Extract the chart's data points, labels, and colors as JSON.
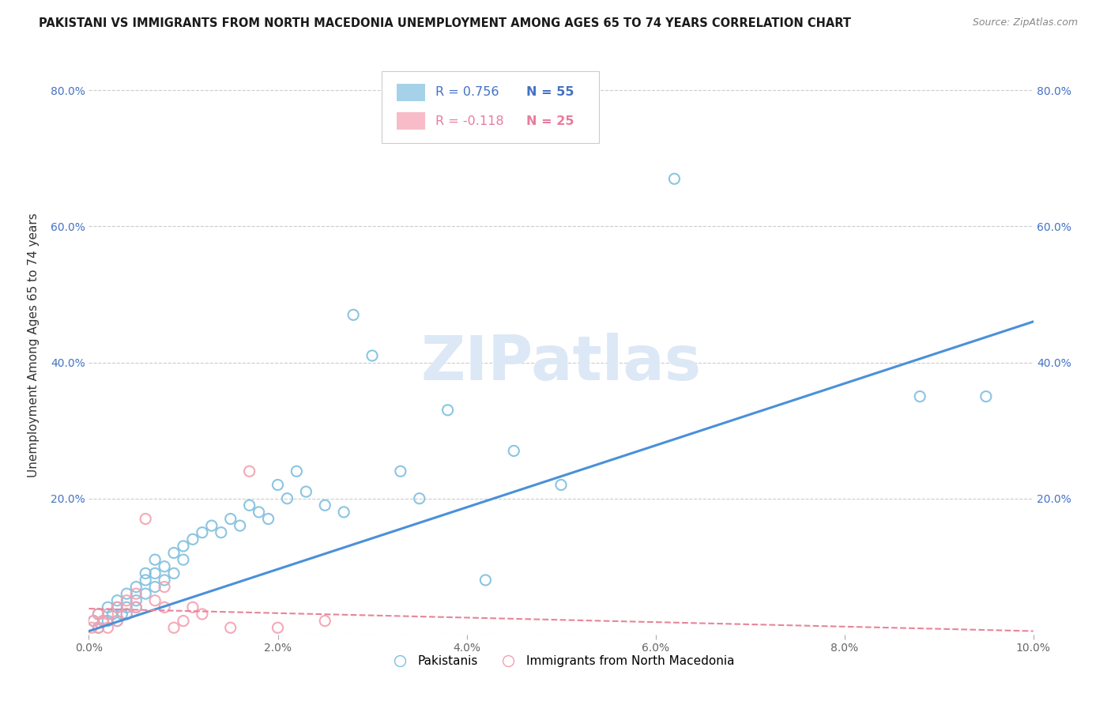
{
  "title": "PAKISTANI VS IMMIGRANTS FROM NORTH MACEDONIA UNEMPLOYMENT AMONG AGES 65 TO 74 YEARS CORRELATION CHART",
  "source": "Source: ZipAtlas.com",
  "ylabel": "Unemployment Among Ages 65 to 74 years",
  "xlim": [
    0.0,
    0.1
  ],
  "ylim": [
    0.0,
    0.85
  ],
  "yticks": [
    0.0,
    0.2,
    0.4,
    0.6,
    0.8
  ],
  "xticks": [
    0.0,
    0.02,
    0.04,
    0.06,
    0.08,
    0.1
  ],
  "xtick_labels": [
    "0.0%",
    "2.0%",
    "4.0%",
    "6.0%",
    "8.0%",
    "10.0%"
  ],
  "ytick_labels": [
    "",
    "20.0%",
    "40.0%",
    "60.0%",
    "80.0%"
  ],
  "blue_R": "R = 0.756",
  "blue_N": "N = 55",
  "pink_R": "R = -0.118",
  "pink_N": "N = 25",
  "blue_color": "#7fbfdf",
  "pink_color": "#f4a0b0",
  "blue_line_color": "#4a90d9",
  "pink_line_color": "#e8849a",
  "legend_pakistanis": "Pakistanis",
  "legend_north_mac": "Immigrants from North Macedonia",
  "blue_scatter_x": [
    0.0005,
    0.001,
    0.001,
    0.0015,
    0.002,
    0.002,
    0.0025,
    0.003,
    0.003,
    0.003,
    0.0035,
    0.004,
    0.004,
    0.004,
    0.005,
    0.005,
    0.005,
    0.006,
    0.006,
    0.006,
    0.007,
    0.007,
    0.007,
    0.008,
    0.008,
    0.009,
    0.009,
    0.01,
    0.01,
    0.011,
    0.012,
    0.013,
    0.014,
    0.015,
    0.016,
    0.017,
    0.018,
    0.019,
    0.02,
    0.021,
    0.022,
    0.023,
    0.025,
    0.027,
    0.028,
    0.03,
    0.033,
    0.035,
    0.038,
    0.042,
    0.045,
    0.05,
    0.062,
    0.088,
    0.095
  ],
  "blue_scatter_y": [
    0.02,
    0.01,
    0.03,
    0.02,
    0.04,
    0.02,
    0.03,
    0.02,
    0.04,
    0.05,
    0.03,
    0.04,
    0.06,
    0.03,
    0.05,
    0.07,
    0.04,
    0.06,
    0.08,
    0.09,
    0.07,
    0.09,
    0.11,
    0.08,
    0.1,
    0.09,
    0.12,
    0.11,
    0.13,
    0.14,
    0.15,
    0.16,
    0.15,
    0.17,
    0.16,
    0.19,
    0.18,
    0.17,
    0.22,
    0.2,
    0.24,
    0.21,
    0.19,
    0.18,
    0.47,
    0.41,
    0.24,
    0.2,
    0.33,
    0.08,
    0.27,
    0.22,
    0.67,
    0.35,
    0.35
  ],
  "pink_scatter_x": [
    0.0003,
    0.0005,
    0.001,
    0.001,
    0.0015,
    0.002,
    0.002,
    0.003,
    0.003,
    0.004,
    0.004,
    0.005,
    0.005,
    0.006,
    0.007,
    0.008,
    0.008,
    0.009,
    0.01,
    0.011,
    0.012,
    0.015,
    0.017,
    0.02,
    0.025
  ],
  "pink_scatter_y": [
    0.01,
    0.02,
    0.01,
    0.03,
    0.02,
    0.01,
    0.03,
    0.02,
    0.04,
    0.05,
    0.03,
    0.06,
    0.04,
    0.17,
    0.05,
    0.07,
    0.04,
    0.01,
    0.02,
    0.04,
    0.03,
    0.01,
    0.24,
    0.01,
    0.02
  ],
  "blue_trendline_x": [
    0.0,
    0.1
  ],
  "blue_trendline_y": [
    0.005,
    0.46
  ],
  "pink_trendline_x": [
    0.0,
    0.1
  ],
  "pink_trendline_y": [
    0.038,
    0.005
  ]
}
